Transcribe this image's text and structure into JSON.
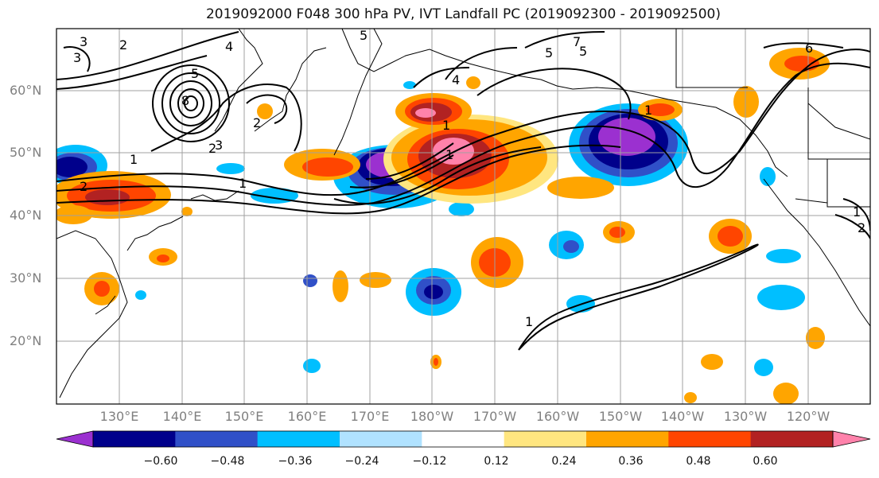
{
  "title": "2019092000 F048 300 hPa PV, IVT Landfall PC (2019092300 - 2019092500)",
  "lat_labels": [
    "60°N",
    "50°N",
    "40°N",
    "30°N",
    "20°N"
  ],
  "lon_labels": [
    "130°E",
    "140°E",
    "150°E",
    "160°E",
    "170°E",
    "180°W",
    "170°W",
    "160°W",
    "150°W",
    "140°W",
    "130°W",
    "120°W"
  ],
  "colorbar": {
    "ticks": [
      "−0.60",
      "−0.48",
      "−0.36",
      "−0.24",
      "−0.12",
      "0.12",
      "0.24",
      "0.36",
      "0.48",
      "0.60"
    ],
    "colors": [
      "#9b30d0",
      "#00008b",
      "#3050c8",
      "#00bfff",
      "#b0e2ff",
      "#ffffff",
      "#ffe680",
      "#ffa500",
      "#ff4500",
      "#b22222",
      "#ff82ab"
    ]
  },
  "contour_labels": [
    "3",
    "2",
    "2",
    "4",
    "8",
    "5",
    "3",
    "2",
    "1",
    "5",
    "4",
    "5",
    "7",
    "1",
    "1",
    "1",
    "1",
    "3",
    "2",
    "1",
    "1",
    "5",
    "6",
    "2"
  ]
}
